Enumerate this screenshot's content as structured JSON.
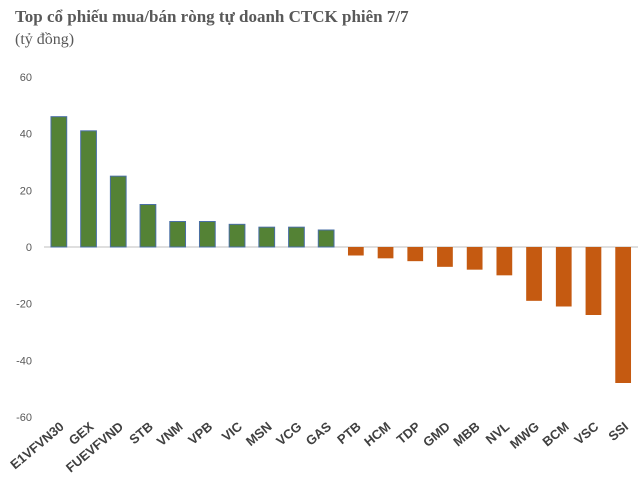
{
  "chart_data": {
    "type": "bar",
    "title": "Top cổ phiếu mua/bán ròng tự doanh CTCK phiên 7/7",
    "subtitle": "(tỷ đồng)",
    "categories": [
      "E1VFVN30",
      "GEX",
      "FUEVFVND",
      "STB",
      "VNM",
      "VPB",
      "VIC",
      "MSN",
      "VCG",
      "GAS",
      "PTB",
      "HCM",
      "TDP",
      "GMD",
      "MBB",
      "NVL",
      "MWG",
      "BCM",
      "VSC",
      "SSI"
    ],
    "values": [
      46,
      41,
      25,
      15,
      9,
      9,
      8,
      7,
      7,
      6,
      -3,
      -4,
      -5,
      -7,
      -8,
      -10,
      -19,
      -21,
      -24,
      -48
    ],
    "ylim": [
      -60,
      60
    ],
    "yticks": [
      60,
      40,
      20,
      0,
      -20,
      -40,
      -60
    ],
    "grid": false,
    "legend": "none",
    "colors": {
      "positive": "#548235",
      "positive_edge": "#4a6fa5",
      "negative": "#c55a11",
      "axis": "#bfbfbf"
    }
  }
}
